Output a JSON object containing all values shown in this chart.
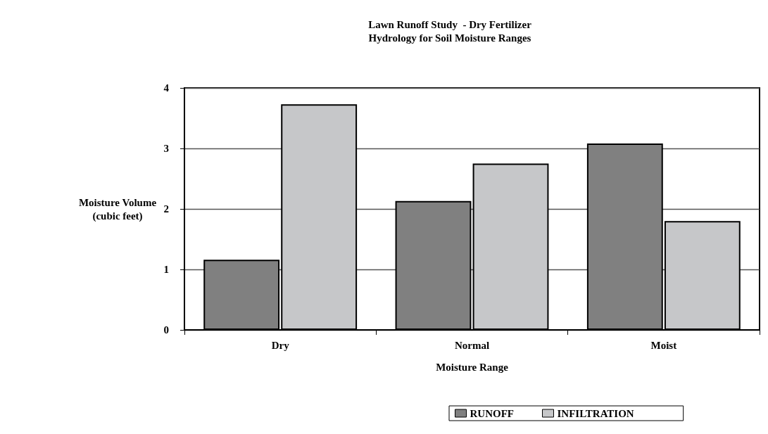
{
  "chart_data": {
    "type": "bar",
    "title": "Lawn Runoff Study  - Dry Fertilizer",
    "subtitle": "Hydrology for Soil Moisture Ranges",
    "xlabel": "Moisture Range",
    "ylabel": "Moisture Volume\n(cubic feet)",
    "categories": [
      "Dry",
      "Normal",
      "Moist"
    ],
    "series": [
      {
        "name": "RUNOFF",
        "color": "#808080",
        "values": [
          1.16,
          2.13,
          3.08
        ]
      },
      {
        "name": "INFILTRATION",
        "color": "#c6c7c9",
        "values": [
          3.73,
          2.75,
          1.8
        ]
      }
    ],
    "ylim": [
      0,
      4
    ],
    "yticks": [
      0,
      1,
      2,
      3,
      4
    ],
    "grid": "y",
    "legend": "bottom"
  }
}
